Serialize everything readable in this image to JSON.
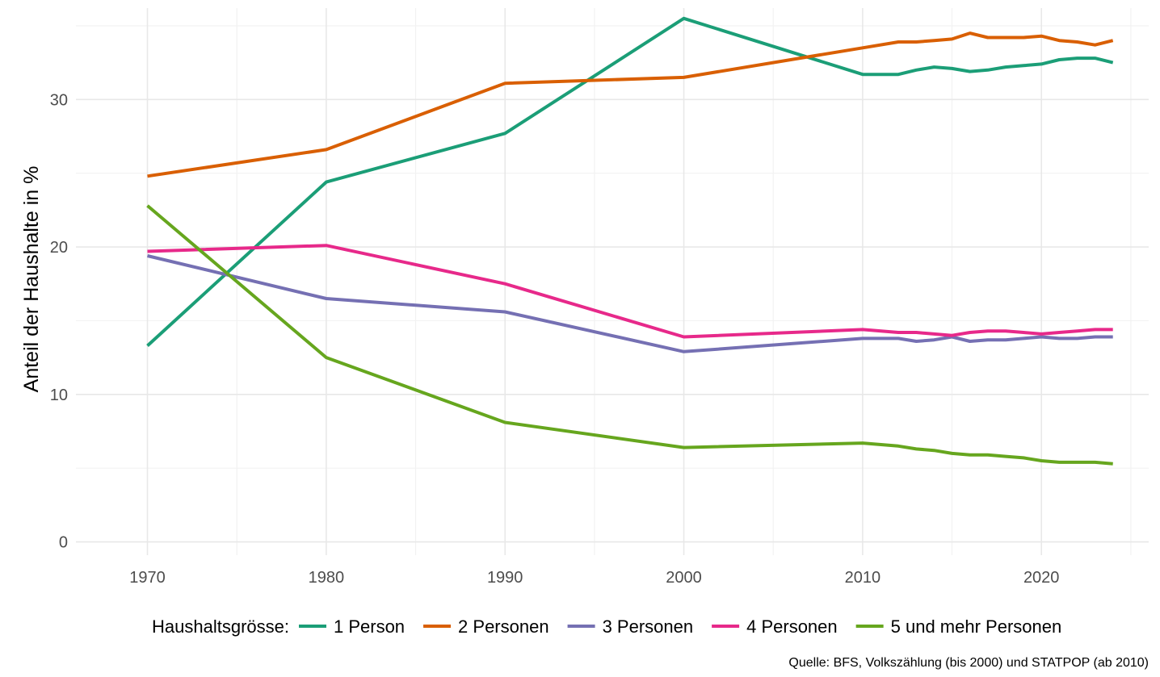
{
  "chart_data": {
    "type": "line",
    "title": "",
    "xlabel": "",
    "ylabel": "Anteil der Haushalte in %",
    "xlim": [
      1966,
      2026
    ],
    "ylim": [
      -0.9,
      36.2
    ],
    "x_ticks": [
      1970,
      1980,
      1990,
      2000,
      2010,
      2020
    ],
    "x_minor_ticks": [
      1975,
      1985,
      1995,
      2005,
      2015,
      2025
    ],
    "y_ticks": [
      0,
      10,
      20,
      30
    ],
    "y_minor_ticks": [
      5,
      15,
      25,
      35
    ],
    "grid": true,
    "legend": {
      "title": "Haushaltsgrösse:",
      "position": "bottom"
    },
    "caption": "Quelle: BFS, Volkszählung (bis 2000) und STATPOP (ab 2010)",
    "series": [
      {
        "name": "1 Person",
        "color": "#1b9e77",
        "points": [
          [
            1970,
            13.3
          ],
          [
            1980,
            24.4
          ],
          [
            1990,
            27.7
          ],
          [
            2000,
            35.5
          ],
          [
            2010,
            31.7
          ],
          [
            2012,
            31.7
          ],
          [
            2013,
            32.0
          ],
          [
            2014,
            32.2
          ],
          [
            2015,
            32.1
          ],
          [
            2016,
            31.9
          ],
          [
            2017,
            32.0
          ],
          [
            2018,
            32.2
          ],
          [
            2019,
            32.3
          ],
          [
            2020,
            32.4
          ],
          [
            2021,
            32.7
          ],
          [
            2022,
            32.8
          ],
          [
            2023,
            32.8
          ],
          [
            2024,
            32.5
          ]
        ]
      },
      {
        "name": "2 Personen",
        "color": "#d95f02",
        "points": [
          [
            1970,
            24.8
          ],
          [
            1980,
            26.6
          ],
          [
            1990,
            31.1
          ],
          [
            2000,
            31.5
          ],
          [
            2010,
            33.5
          ],
          [
            2012,
            33.9
          ],
          [
            2013,
            33.9
          ],
          [
            2014,
            34.0
          ],
          [
            2015,
            34.1
          ],
          [
            2016,
            34.5
          ],
          [
            2017,
            34.2
          ],
          [
            2018,
            34.2
          ],
          [
            2019,
            34.2
          ],
          [
            2020,
            34.3
          ],
          [
            2021,
            34.0
          ],
          [
            2022,
            33.9
          ],
          [
            2023,
            33.7
          ],
          [
            2024,
            34.0
          ]
        ]
      },
      {
        "name": "3 Personen",
        "color": "#7570b3",
        "points": [
          [
            1970,
            19.4
          ],
          [
            1980,
            16.5
          ],
          [
            1990,
            15.6
          ],
          [
            2000,
            12.9
          ],
          [
            2010,
            13.8
          ],
          [
            2012,
            13.8
          ],
          [
            2013,
            13.6
          ],
          [
            2014,
            13.7
          ],
          [
            2015,
            13.9
          ],
          [
            2016,
            13.6
          ],
          [
            2017,
            13.7
          ],
          [
            2018,
            13.7
          ],
          [
            2019,
            13.8
          ],
          [
            2020,
            13.9
          ],
          [
            2021,
            13.8
          ],
          [
            2022,
            13.8
          ],
          [
            2023,
            13.9
          ],
          [
            2024,
            13.9
          ]
        ]
      },
      {
        "name": "4 Personen",
        "color": "#e7298a",
        "points": [
          [
            1970,
            19.7
          ],
          [
            1980,
            20.1
          ],
          [
            1990,
            17.5
          ],
          [
            2000,
            13.9
          ],
          [
            2010,
            14.4
          ],
          [
            2012,
            14.2
          ],
          [
            2013,
            14.2
          ],
          [
            2014,
            14.1
          ],
          [
            2015,
            14.0
          ],
          [
            2016,
            14.2
          ],
          [
            2017,
            14.3
          ],
          [
            2018,
            14.3
          ],
          [
            2019,
            14.2
          ],
          [
            2020,
            14.1
          ],
          [
            2021,
            14.2
          ],
          [
            2022,
            14.3
          ],
          [
            2023,
            14.4
          ],
          [
            2024,
            14.4
          ]
        ]
      },
      {
        "name": "5 und mehr Personen",
        "color": "#66a61e",
        "points": [
          [
            1970,
            22.8
          ],
          [
            1980,
            12.5
          ],
          [
            1990,
            8.1
          ],
          [
            2000,
            6.4
          ],
          [
            2010,
            6.7
          ],
          [
            2012,
            6.5
          ],
          [
            2013,
            6.3
          ],
          [
            2014,
            6.2
          ],
          [
            2015,
            6.0
          ],
          [
            2016,
            5.9
          ],
          [
            2017,
            5.9
          ],
          [
            2018,
            5.8
          ],
          [
            2019,
            5.7
          ],
          [
            2020,
            5.5
          ],
          [
            2021,
            5.4
          ],
          [
            2022,
            5.4
          ],
          [
            2023,
            5.4
          ],
          [
            2024,
            5.3
          ]
        ]
      }
    ]
  }
}
